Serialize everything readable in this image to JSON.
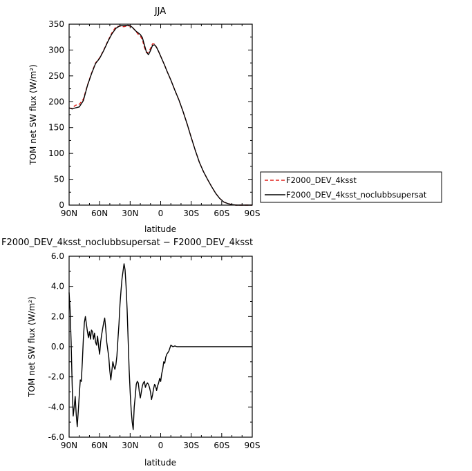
{
  "chart_data": [
    {
      "type": "line",
      "title": "JJA",
      "xlabel": "latitude",
      "ylabel": "TOM net SW flux (W/m²)",
      "xlim": [
        90,
        -90
      ],
      "ylim": [
        0,
        350
      ],
      "xticks": [
        90,
        60,
        30,
        0,
        -30,
        -60,
        -90
      ],
      "xticklabels": [
        "90N",
        "60N",
        "30N",
        "0",
        "30S",
        "60S",
        "90S"
      ],
      "yticks": [
        0,
        50,
        100,
        150,
        200,
        250,
        300,
        350
      ],
      "yticklabels": [
        "0",
        "50",
        "100",
        "150",
        "200",
        "250",
        "300",
        "350"
      ],
      "legend_position": "right",
      "series": [
        {
          "name": "F2000_DEV_4ksst",
          "color": "#e0201b",
          "dash": "dashed",
          "x": [
            90,
            87,
            84,
            80,
            76,
            72,
            68,
            64,
            60,
            56,
            52,
            48,
            44,
            40,
            36,
            32,
            30,
            28,
            26,
            24,
            22,
            20,
            18,
            16,
            14,
            12,
            10,
            8,
            6,
            4,
            2,
            0,
            -2,
            -4,
            -6,
            -8,
            -10,
            -14,
            -18,
            -22,
            -26,
            -30,
            -34,
            -38,
            -42,
            -46,
            -50,
            -54,
            -58,
            -62,
            -66,
            -70,
            -74,
            -78,
            -82,
            -86,
            -90
          ],
          "y": [
            188,
            187,
            193,
            195,
            205,
            232,
            255,
            275,
            285,
            300,
            317,
            333,
            345,
            346,
            345,
            347,
            346,
            345,
            340,
            335,
            330,
            327,
            320,
            305,
            295,
            296,
            303,
            312,
            312,
            305,
            297,
            288,
            279,
            270,
            260,
            251,
            242,
            222,
            203,
            181,
            157,
            131,
            106,
            83,
            65,
            50,
            36,
            23,
            13,
            6,
            3,
            1,
            0,
            0,
            0,
            0,
            0
          ]
        },
        {
          "name": "F2000_DEV_4ksst_noclubbsupersat",
          "color": "#000000",
          "dash": "solid",
          "x": [
            90,
            87,
            84,
            80,
            76,
            72,
            68,
            64,
            60,
            56,
            52,
            48,
            44,
            40,
            36,
            32,
            30,
            28,
            26,
            24,
            22,
            20,
            18,
            16,
            14,
            12,
            10,
            8,
            6,
            4,
            2,
            0,
            -2,
            -4,
            -6,
            -8,
            -10,
            -14,
            -18,
            -22,
            -26,
            -30,
            -34,
            -38,
            -42,
            -46,
            -50,
            -54,
            -58,
            -62,
            -66,
            -70,
            -74,
            -78,
            -82,
            -86,
            -90
          ],
          "y": [
            188,
            186,
            188,
            190,
            202,
            231,
            254,
            274,
            284,
            299,
            316,
            331,
            342,
            347,
            347,
            348,
            347,
            344,
            340,
            336,
            333,
            330,
            324,
            310,
            296,
            291,
            299,
            309,
            310,
            305,
            297,
            288,
            279,
            270,
            260,
            251,
            242,
            222,
            203,
            181,
            157,
            131,
            106,
            83,
            65,
            50,
            36,
            23,
            13,
            6,
            3,
            1,
            0,
            0,
            0,
            0,
            0
          ]
        }
      ]
    },
    {
      "type": "line",
      "title": "F2000_DEV_4ksst_noclubbsupersat − F2000_DEV_4ksst",
      "xlabel": "latitude",
      "ylabel": "TOM net SW flux (W/m²)",
      "xlim": [
        90,
        -90
      ],
      "ylim": [
        -6,
        6
      ],
      "xticks": [
        90,
        60,
        30,
        0,
        -30,
        -60,
        -90
      ],
      "xticklabels": [
        "90N",
        "60N",
        "30N",
        "0",
        "30S",
        "60S",
        "90S"
      ],
      "yticks": [
        -6,
        -4,
        -2,
        0,
        2,
        4,
        6
      ],
      "yticklabels": [
        "-6.0",
        "-4.0",
        "-2.0",
        "0.0",
        "2.0",
        "4.0",
        "6.0"
      ],
      "series": [
        {
          "color": "#000000",
          "dash": "solid",
          "x": [
            90,
            89,
            88,
            87,
            86,
            85,
            84,
            83,
            82,
            81,
            80,
            79,
            78,
            77,
            76,
            75,
            74,
            73,
            72,
            71,
            70,
            69,
            68,
            67,
            66,
            65,
            64,
            63,
            62,
            61,
            60,
            59,
            58,
            57,
            56,
            55,
            54,
            53,
            52,
            51,
            50,
            49,
            48,
            47,
            46,
            45,
            44,
            43,
            42,
            41,
            40,
            39,
            38,
            37,
            36,
            35,
            34,
            33,
            32,
            31,
            30,
            29,
            28,
            27,
            26,
            25,
            24,
            23,
            22,
            21,
            20,
            19,
            18,
            17,
            16,
            15,
            14,
            13,
            12,
            11,
            10,
            9,
            8,
            7,
            6,
            5,
            4,
            3,
            2,
            1,
            0,
            -1,
            -2,
            -3,
            -4,
            -5,
            -6,
            -7,
            -8,
            -9,
            -10,
            -12,
            -14,
            -16,
            -18,
            -20,
            -22,
            -24,
            -26,
            -28,
            -30,
            -32,
            -34,
            -36,
            -38,
            -40,
            -42,
            -44,
            -46,
            -48,
            -50,
            -52,
            -54,
            -56,
            -58,
            -60,
            -62,
            -64,
            -66,
            -70,
            -75,
            -80,
            -85,
            -90
          ],
          "y": [
            3.6,
            2.4,
            0.3,
            -2.5,
            -4.6,
            -4.0,
            -3.3,
            -4.5,
            -5.3,
            -4.3,
            -3.2,
            -2.2,
            -2.3,
            -1.0,
            0.5,
            1.6,
            2.0,
            1.5,
            1.0,
            0.6,
            1.0,
            0.5,
            1.1,
            1.0,
            0.5,
            0.9,
            0.3,
            0.1,
            0.7,
            0.0,
            -0.5,
            0.3,
            0.8,
            1.2,
            1.6,
            1.9,
            1.2,
            0.3,
            -0.2,
            -0.7,
            -1.6,
            -2.2,
            -1.6,
            -1.0,
            -1.3,
            -1.5,
            -1.2,
            -0.6,
            0.5,
            1.5,
            2.8,
            3.7,
            4.5,
            5.0,
            5.5,
            5.1,
            4.0,
            2.5,
            0.5,
            -1.5,
            -3.0,
            -4.2,
            -5.0,
            -5.5,
            -4.0,
            -3.3,
            -2.5,
            -2.3,
            -2.4,
            -3.0,
            -3.4,
            -3.0,
            -2.6,
            -2.4,
            -2.3,
            -2.7,
            -2.5,
            -2.4,
            -2.5,
            -2.7,
            -3.0,
            -3.5,
            -3.2,
            -2.8,
            -2.5,
            -2.6,
            -2.9,
            -2.6,
            -2.4,
            -2.1,
            -2.3,
            -1.8,
            -1.5,
            -1.0,
            -1.1,
            -0.7,
            -0.5,
            -0.4,
            -0.3,
            -0.1,
            0.1,
            0.0,
            0.05,
            0.0,
            0.0,
            0.0,
            0.0,
            0.0,
            0.0,
            0.0,
            0.0,
            0.0,
            0.0,
            0.0,
            0.0,
            0.0,
            0.0,
            0.0,
            0.0,
            0.0,
            0.0,
            0.0,
            0.0,
            0.0,
            0.0,
            0.0,
            0.0,
            0.0,
            0.0,
            0.0,
            0.0,
            0.0,
            0.0,
            0.0
          ]
        }
      ]
    }
  ]
}
